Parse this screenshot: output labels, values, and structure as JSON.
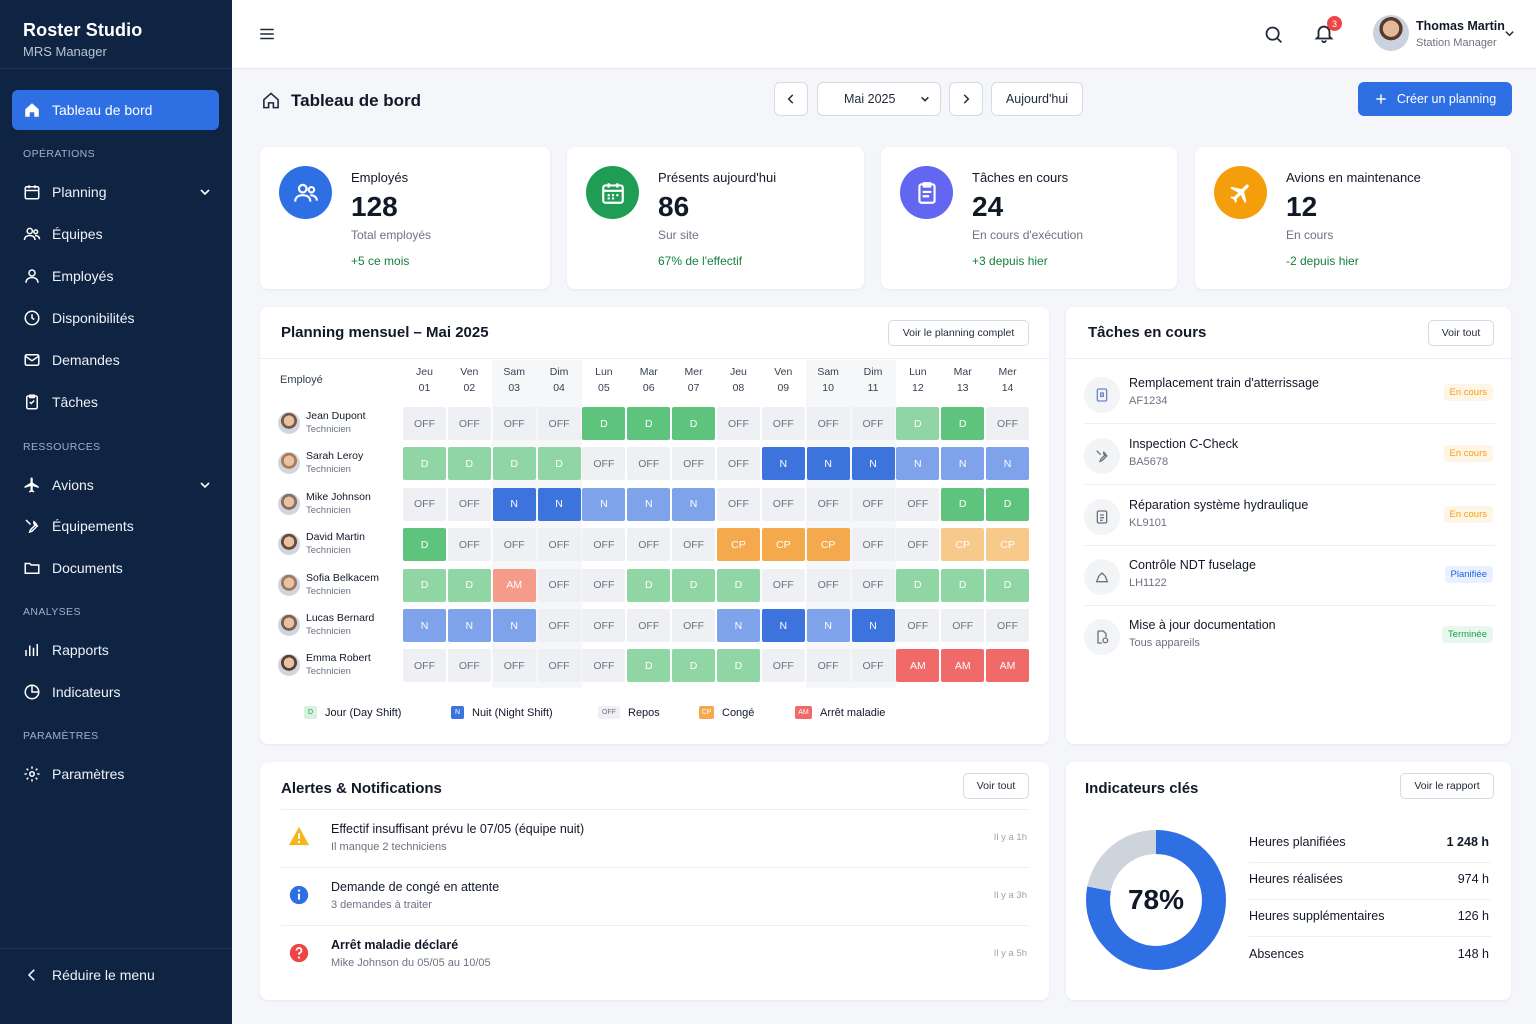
{
  "app": {
    "title": "Roster Studio",
    "subtitle": "MRS Manager"
  },
  "sidebar": {
    "active": "Tableau de bord",
    "sections": {
      "operations": "OPÉRATIONS",
      "resources": "RESSOURCES",
      "analyses": "ANALYSES",
      "settings": "PARAMÈTRES"
    },
    "items": {
      "planning": "Planning",
      "equipes": "Équipes",
      "employes": "Employés",
      "disponibilites": "Disponibilités",
      "demandes": "Demandes",
      "taches": "Tâches",
      "avions": "Avions",
      "equipements": "Équipements",
      "documents": "Documents",
      "rapports": "Rapports",
      "indicateurs": "Indicateurs",
      "parametres": "Paramètres"
    },
    "collapse": "Réduire le menu"
  },
  "topbar": {
    "notif_count": "3",
    "user_name": "Thomas Martin",
    "user_role": "Station Manager"
  },
  "header": {
    "title": "Tableau de bord",
    "month": "Mai 2025",
    "today": "Aujourd'hui",
    "create": "Créer un planning"
  },
  "stats": [
    {
      "label": "Employés",
      "value": "128",
      "sub": "Total employés",
      "trend": "+5 ce mois",
      "color": "#2f6fe4",
      "icon": "users-icon"
    },
    {
      "label": "Présents aujourd'hui",
      "value": "86",
      "sub": "Sur site",
      "trend": "67% de l'effectif",
      "color": "#1f9d55",
      "icon": "calendar-icon"
    },
    {
      "label": "Tâches en cours",
      "value": "24",
      "sub": "En cours d'exécution",
      "trend": "+3 depuis hier",
      "color": "#6366f1",
      "icon": "clipboard-icon"
    },
    {
      "label": "Avions en maintenance",
      "value": "12",
      "sub": "En cours",
      "trend": "-2 depuis hier",
      "color": "#f59e0b",
      "icon": "plane-icon"
    }
  ],
  "planning": {
    "title": "Planning mensuel – Mai 2025",
    "view_all": "Voir le planning complet",
    "col_employee": "Employé",
    "days": [
      {
        "d": "Jeu",
        "n": "01"
      },
      {
        "d": "Ven",
        "n": "02"
      },
      {
        "d": "Sam",
        "n": "03"
      },
      {
        "d": "Dim",
        "n": "04"
      },
      {
        "d": "Lun",
        "n": "05"
      },
      {
        "d": "Mar",
        "n": "06"
      },
      {
        "d": "Mer",
        "n": "07"
      },
      {
        "d": "Jeu",
        "n": "08"
      },
      {
        "d": "Ven",
        "n": "09"
      },
      {
        "d": "Sam",
        "n": "10"
      },
      {
        "d": "Dim",
        "n": "11"
      },
      {
        "d": "Lun",
        "n": "12"
      },
      {
        "d": "Mar",
        "n": "13"
      },
      {
        "d": "Mer",
        "n": "14"
      }
    ],
    "rows": [
      {
        "name": "Jean Dupont",
        "role": "Technicien",
        "shifts": [
          "OFF",
          "OFF",
          "OFF",
          "OFF",
          "D",
          "D",
          "D",
          "OFF",
          "OFF",
          "OFF",
          "OFF",
          "D~",
          "D",
          "OFF"
        ]
      },
      {
        "name": "Sarah Leroy",
        "role": "Technicien",
        "shifts": [
          "D~",
          "D~",
          "D~",
          "D~",
          "OFF",
          "OFF",
          "OFF",
          "OFF",
          "N",
          "N",
          "N",
          "N~",
          "N~",
          "N~"
        ]
      },
      {
        "name": "Mike Johnson",
        "role": "Technicien",
        "shifts": [
          "OFF",
          "OFF",
          "N",
          "N",
          "N~",
          "N~",
          "N~",
          "OFF",
          "OFF",
          "OFF",
          "OFF",
          "OFF",
          "D",
          "D"
        ]
      },
      {
        "name": "David Martin",
        "role": "Technicien",
        "shifts": [
          "D",
          "OFF",
          "OFF",
          "OFF",
          "OFF",
          "OFF",
          "OFF",
          "CP",
          "CP",
          "CP",
          "OFF",
          "OFF",
          "CP~",
          "CP~"
        ]
      },
      {
        "name": "Sofia Belkacem",
        "role": "Technicien",
        "shifts": [
          "D~",
          "D~",
          "AM~",
          "OFF",
          "OFF",
          "D~",
          "D~",
          "D~",
          "OFF",
          "OFF",
          "OFF",
          "D~",
          "D~",
          "D~"
        ]
      },
      {
        "name": "Lucas Bernard",
        "role": "Technicien",
        "shifts": [
          "N~",
          "N~",
          "N~",
          "OFF",
          "OFF",
          "OFF",
          "OFF",
          "N~",
          "N",
          "N~",
          "N",
          "OFF",
          "OFF",
          "OFF"
        ]
      },
      {
        "name": "Emma Robert",
        "role": "Technicien",
        "shifts": [
          "OFF",
          "OFF",
          "OFF",
          "OFF",
          "OFF",
          "D~",
          "D~",
          "D~",
          "OFF",
          "OFF",
          "OFF",
          "AM",
          "AM",
          "AM"
        ]
      }
    ],
    "legend": {
      "d": "Jour (Day Shift)",
      "n": "Nuit (Night Shift)",
      "off": "Repos",
      "cp": "Congé",
      "am": "Arrêt maladie"
    }
  },
  "tasks": {
    "title": "Tâches en cours",
    "view_all": "Voir tout",
    "items": [
      {
        "title": "Remplacement train d'atterrissage",
        "code": "AF1234",
        "status": "En cours",
        "icon": "tablet-icon"
      },
      {
        "title": "Inspection C-Check",
        "code": "BA5678",
        "status": "En cours",
        "icon": "wrench-icon"
      },
      {
        "title": "Réparation système hydraulique",
        "code": "KL9101",
        "status": "En cours",
        "icon": "document-icon"
      },
      {
        "title": "Contrôle NDT fuselage",
        "code": "LH1122",
        "status": "Planifiée",
        "icon": "fuselage-icon"
      },
      {
        "title": "Mise à jour documentation",
        "code": "Tous appareils",
        "status": "Terminée",
        "icon": "doc-update-icon"
      }
    ],
    "status_colors": {
      "En cours": "#f59e0b",
      "Planifiée": "#2563eb",
      "Terminée": "#16a34a"
    }
  },
  "alerts": {
    "title": "Alertes & Notifications",
    "view_all": "Voir tout",
    "items": [
      {
        "title": "Effectif insuffisant prévu le 07/05 (équipe nuit)",
        "sub": "Il manque 2 techniciens",
        "time": "Il y a 1h",
        "icon": "warning-icon"
      },
      {
        "title": "Demande de congé en attente",
        "sub": "3 demandes à traiter",
        "time": "Il y a 3h",
        "icon": "info-icon"
      },
      {
        "title": "Arrêt maladie déclaré",
        "sub": "Mike Johnson du 05/05 au 10/05",
        "time": "Il y a 5h",
        "icon": "question-icon"
      }
    ]
  },
  "kpis": {
    "title": "Indicateurs clés",
    "view_report": "Voir le rapport",
    "percent_label": "78%",
    "percent": 0.78,
    "rows": [
      {
        "label": "Heures planifiées",
        "value": "1 248 h"
      },
      {
        "label": "Heures réalisées",
        "value": "974 h"
      },
      {
        "label": "Heures supplémentaires",
        "value": "126 h"
      },
      {
        "label": "Absences",
        "value": "148 h"
      }
    ]
  }
}
